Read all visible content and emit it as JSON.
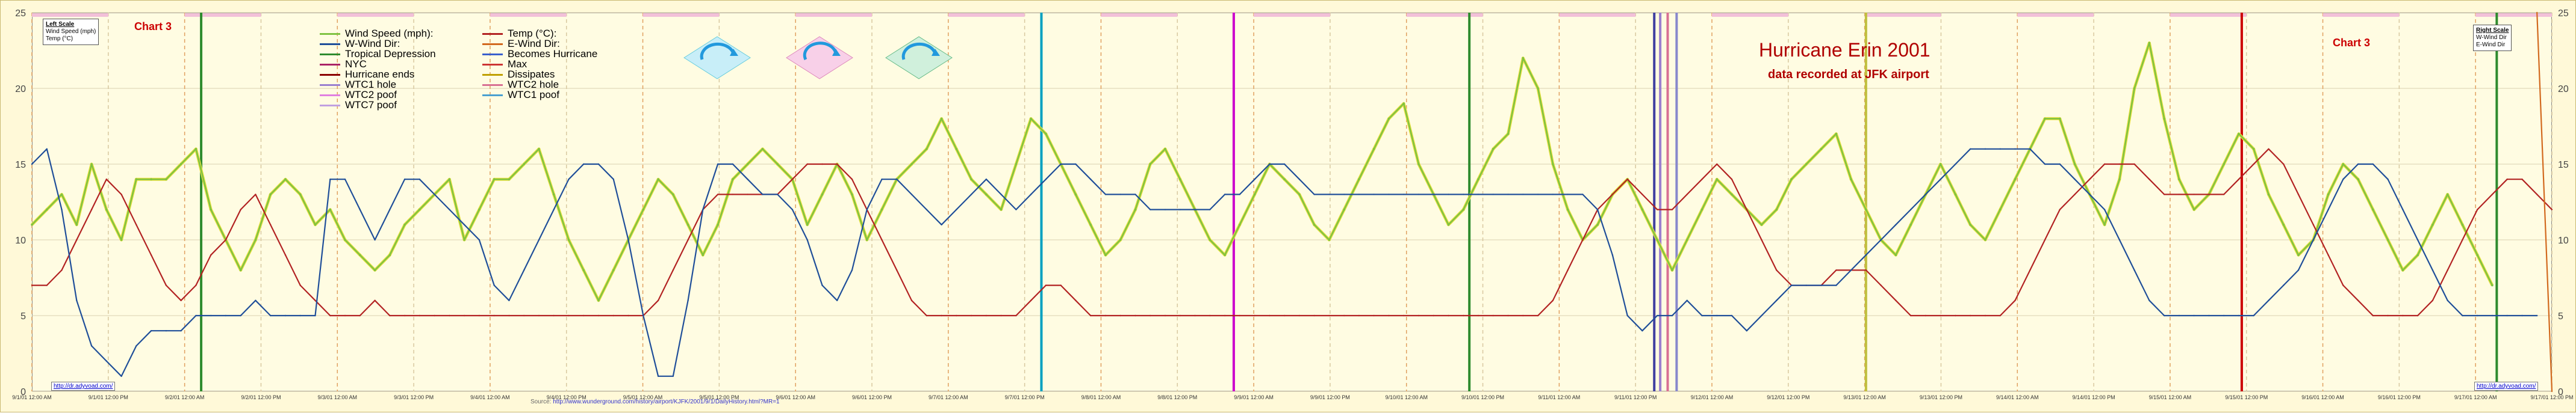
{
  "page": {
    "chart_tag": "Chart 3",
    "title": "Hurricane Erin 2001",
    "subtitle": "data recorded at JFK airport",
    "left_scale": {
      "title": "Left Scale",
      "lines": [
        "Wind Speed (mph)",
        "Temp (°C)"
      ]
    },
    "right_scale": {
      "title": "Right Scale",
      "lines": [
        "W-Wind Dir",
        "E-Wind Dir"
      ]
    },
    "url_text": "http://dr.adyvoad.com/",
    "source_label": "Source:",
    "source_url": "http://www.wunderground.com/history/airport/KJFK/2001/9/1/DailyHistory.html?MR=1"
  },
  "chart_data": {
    "type": "line",
    "ylim": [
      0,
      25
    ],
    "yticks": [
      0,
      5,
      10,
      15,
      20,
      25
    ],
    "grid": true,
    "legend_position": "top-left",
    "x_tick_labels": [
      "9/1/01 12:00 AM",
      "9/1/01 12:00 PM",
      "9/2/01 12:00 AM",
      "9/2/01 12:00 PM",
      "9/3/01 12:00 AM",
      "9/3/01 12:00 PM",
      "9/4/01 12:00 AM",
      "9/4/01 12:00 PM",
      "9/5/01 12:00 AM",
      "9/5/01 12:00 PM",
      "9/6/01 12:00 AM",
      "9/6/01 12:00 PM",
      "9/7/01 12:00 AM",
      "9/7/01 12:00 PM",
      "9/8/01 12:00 AM",
      "9/8/01 12:00 PM",
      "9/9/01 12:00 AM",
      "9/9/01 12:00 PM",
      "9/10/01 12:00 AM",
      "9/10/01 12:00 PM",
      "9/11/01 12:00 AM",
      "9/11/01 12:00 PM",
      "9/12/01 12:00 AM",
      "9/12/01 12:00 PM",
      "9/13/01 12:00 AM",
      "9/13/01 12:00 PM",
      "9/14/01 12:00 AM",
      "9/14/01 12:00 PM",
      "9/15/01 12:00 AM",
      "9/15/01 12:00 PM",
      "9/16/01 12:00 AM",
      "9/16/01 12:00 PM",
      "9/17/01 12:00 AM",
      "9/17/01 12:00 PM"
    ],
    "legend": [
      {
        "label": "Wind Speed (mph):",
        "color": "#7fc241"
      },
      {
        "label": "W-Wind Dir:",
        "color": "#1f4e99"
      },
      {
        "label": "Tropical Depression",
        "color": "#2e8b2e"
      },
      {
        "label": "NYC",
        "color": "#aa2266"
      },
      {
        "label": "Hurricane ends",
        "color": "#8b0000"
      },
      {
        "label": "WTC1 hole",
        "color": "#9a7fcf"
      },
      {
        "label": "WTC2 poof",
        "color": "#e080e0"
      },
      {
        "label": "WTC7 poof",
        "color": "#c0a0e0"
      },
      {
        "label": "Temp (°C):",
        "color": "#b22222"
      },
      {
        "label": "E-Wind Dir:",
        "color": "#d2691e"
      },
      {
        "label": "Becomes Hurricane",
        "color": "#3a5fcd"
      },
      {
        "label": "Max",
        "color": "#cc3333"
      },
      {
        "label": "Dissipates",
        "color": "#c0a000"
      },
      {
        "label": "WTC2 hole",
        "color": "#d87093"
      },
      {
        "label": "WTC1 poof",
        "color": "#4aa0d0"
      }
    ],
    "event_lines": [
      {
        "x": 11.35,
        "color": "#2e8b2e"
      },
      {
        "x": 67.7,
        "color": "#00a0c0"
      },
      {
        "x": 80.6,
        "color": "#cc00cc"
      },
      {
        "x": 96.4,
        "color": "#2e8b2e"
      },
      {
        "x": 108.8,
        "color": "#4040a0"
      },
      {
        "x": 109.2,
        "color": "#9a7fcf"
      },
      {
        "x": 109.7,
        "color": "#d87093"
      },
      {
        "x": 110.3,
        "color": "#8888cc"
      },
      {
        "x": 123.0,
        "color": "#c0c040"
      },
      {
        "x": 148.2,
        "color": "#cc0000"
      },
      {
        "x": 165.3,
        "color": "#2e8b2e"
      }
    ],
    "series": [
      {
        "name": "Wind Speed (mph):",
        "color": "#7fc241",
        "x_step": 1,
        "values": [
          11,
          12,
          13,
          11,
          15,
          12,
          10,
          14,
          14,
          14,
          15,
          16,
          12,
          10,
          8,
          10,
          13,
          14,
          13,
          11,
          12,
          10,
          9,
          8,
          9,
          11,
          12,
          13,
          14,
          10,
          12,
          14,
          14,
          15,
          16,
          13,
          10,
          8,
          6,
          8,
          10,
          12,
          14,
          13,
          11,
          9,
          11,
          14,
          15,
          16,
          15,
          14,
          11,
          13,
          15,
          13,
          10,
          12,
          14,
          15,
          16,
          18,
          16,
          14,
          13,
          12,
          15,
          18,
          17,
          15,
          13,
          11,
          9,
          10,
          12,
          15,
          16,
          14,
          12,
          10,
          9,
          11,
          13,
          15,
          14,
          13,
          11,
          10,
          12,
          14,
          16,
          18,
          19,
          15,
          13,
          11,
          12,
          14,
          16,
          17,
          22,
          20,
          15,
          12,
          10,
          11,
          13,
          14,
          12,
          10,
          8,
          10,
          12,
          14,
          13,
          12,
          11,
          12,
          14,
          15,
          16,
          17,
          14,
          12,
          10,
          9,
          11,
          13,
          15,
          13,
          11,
          10,
          12,
          14,
          16,
          18,
          18,
          15,
          13,
          11,
          14,
          20,
          23,
          18,
          14,
          12,
          13,
          15,
          17,
          16,
          13,
          11,
          9,
          10,
          13,
          15,
          14,
          12,
          10,
          8,
          9,
          11,
          13,
          11,
          9,
          7
        ]
      },
      {
        "name": "Temp (°C):",
        "color": "#b22222",
        "x_step": 1,
        "values": [
          7,
          7,
          8,
          10,
          12,
          14,
          13,
          11,
          9,
          7,
          6,
          7,
          9,
          10,
          12,
          13,
          11,
          9,
          7,
          6,
          5,
          5,
          5,
          6,
          5,
          5,
          5,
          5,
          5,
          5,
          5,
          5,
          5,
          5,
          5,
          5,
          5,
          5,
          5,
          5,
          5,
          5,
          6,
          8,
          10,
          12,
          13,
          13,
          13,
          13,
          13,
          14,
          15,
          15,
          15,
          14,
          12,
          10,
          8,
          6,
          5,
          5,
          5,
          5,
          5,
          5,
          5,
          6,
          7,
          7,
          6,
          5,
          5,
          5,
          5,
          5,
          5,
          5,
          5,
          5,
          5,
          5,
          5,
          5,
          5,
          5,
          5,
          5,
          5,
          5,
          5,
          5,
          5,
          5,
          5,
          5,
          5,
          5,
          5,
          5,
          5,
          5,
          6,
          8,
          10,
          12,
          13,
          14,
          13,
          12,
          12,
          13,
          14,
          15,
          14,
          12,
          10,
          8,
          7,
          7,
          7,
          8,
          8,
          8,
          7,
          6,
          5,
          5,
          5,
          5,
          5,
          5,
          5,
          6,
          8,
          10,
          12,
          13,
          14,
          15,
          15,
          15,
          14,
          13,
          13,
          13,
          13,
          13,
          14,
          15,
          16,
          15,
          13,
          11,
          9,
          7,
          6,
          5,
          5,
          5,
          5,
          6,
          8,
          10,
          12,
          13,
          14,
          14,
          13,
          12
        ]
      },
      {
        "name": "W-Wind Dir:",
        "color": "#1f4e99",
        "x_step": 1,
        "values": [
          15,
          16,
          12,
          6,
          3,
          2,
          1,
          3,
          4,
          4,
          4,
          5,
          5,
          5,
          5,
          6,
          5,
          5,
          5,
          5,
          14,
          14,
          12,
          10,
          12,
          14,
          14,
          13,
          12,
          11,
          10,
          7,
          6,
          8,
          10,
          12,
          14,
          15,
          15,
          14,
          10,
          5,
          1,
          1,
          6,
          12,
          15,
          15,
          14,
          13,
          13,
          12,
          10,
          7,
          6,
          8,
          12,
          14,
          14,
          13,
          12,
          11,
          12,
          13,
          14,
          13,
          12,
          13,
          14,
          15,
          15,
          14,
          13,
          13,
          13,
          12,
          12,
          12,
          12,
          12,
          13,
          13,
          14,
          15,
          15,
          14,
          13,
          13,
          13,
          13,
          13,
          13,
          13,
          13,
          13,
          13,
          13,
          13,
          13,
          13,
          13,
          13,
          13,
          13,
          13,
          12,
          9,
          5,
          4,
          5,
          5,
          6,
          5,
          5,
          5,
          4,
          5,
          6,
          7,
          7,
          7,
          7,
          8,
          9,
          10,
          11,
          12,
          13,
          14,
          15,
          16,
          16,
          16,
          16,
          16,
          15,
          15,
          14,
          13,
          12,
          10,
          8,
          6,
          5,
          5,
          5,
          5,
          5,
          5,
          5,
          6,
          7,
          8,
          10,
          12,
          14,
          15,
          15,
          14,
          12,
          10,
          8,
          6,
          5,
          5,
          5,
          5,
          5,
          5
        ]
      },
      {
        "name": "E-Wind Dir:",
        "color": "#d2691e",
        "x_step": 1,
        "values": [
          null,
          null,
          null,
          null,
          null,
          null,
          null,
          null,
          null,
          null,
          null,
          null,
          null,
          null,
          null,
          null,
          null,
          null,
          null,
          null,
          null,
          null,
          null,
          null,
          null,
          null,
          null,
          null,
          null,
          null,
          null,
          null,
          null,
          null,
          null,
          null,
          null,
          null,
          null,
          null,
          null,
          null,
          null,
          null,
          null,
          null,
          null,
          null,
          null,
          null,
          null,
          null,
          null,
          null,
          null,
          null,
          null,
          null,
          null,
          null,
          null,
          null,
          null,
          null,
          null,
          null,
          null,
          null,
          null,
          null,
          null,
          null,
          null,
          null,
          null,
          null,
          null,
          null,
          null,
          null,
          null,
          null,
          null,
          null,
          null,
          null,
          null,
          null,
          null,
          null,
          null,
          null,
          null,
          null,
          null,
          null,
          null,
          null,
          null,
          null,
          null,
          null,
          null,
          null,
          null,
          null,
          null,
          null,
          null,
          null,
          null,
          null,
          null,
          null,
          null,
          null,
          null,
          null,
          null,
          null,
          null,
          null,
          null,
          null,
          null,
          null,
          null,
          null,
          null,
          null,
          null,
          null,
          null,
          null,
          null,
          null,
          null,
          null,
          null,
          null,
          null,
          null,
          null,
          null,
          null,
          null,
          null,
          null,
          null,
          null,
          null,
          null,
          null,
          null,
          null,
          null,
          null,
          null,
          null,
          null,
          null,
          null,
          null,
          null,
          null,
          null,
          null,
          null,
          25,
          0
        ]
      }
    ]
  }
}
